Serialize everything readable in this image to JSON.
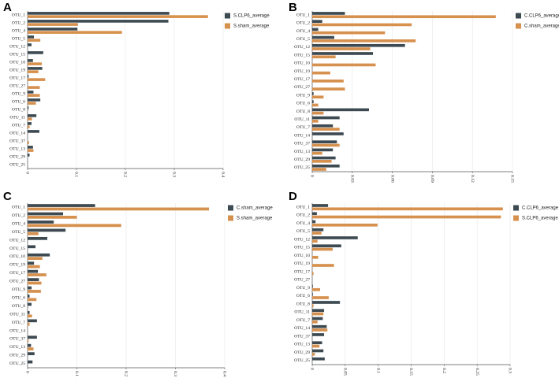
{
  "colors": {
    "dark": "#3d4a52",
    "orange": "#d6914f"
  },
  "chart_data": [
    {
      "type": "bar",
      "panel_label": "A",
      "orientation": "horizontal",
      "categories": [
        "OTU_1",
        "OTU_2",
        "OTU_4",
        "OTU_5",
        "OTU_12",
        "OTU_15",
        "OTU_10",
        "OTU_19",
        "OTU_17",
        "OTU_27",
        "OTU_9",
        "OTU_6",
        "OTU_8",
        "OTU_11",
        "OTU_7",
        "OTU_14",
        "OTU_37",
        "OTU_13",
        "OTU_29",
        "OTU_25"
      ],
      "series": [
        {
          "name": "S.CLP6_average",
          "color": "#3d4a52",
          "values": [
            0.29,
            0.288,
            0.102,
            0.013,
            0.008,
            0.032,
            0.011,
            0.03,
            0.002,
            0.0,
            0.012,
            0.026,
            0.002,
            0.018,
            0.008,
            0.024,
            0.0,
            0.011,
            0.004,
            0.0
          ]
        },
        {
          "name": "S.sham_average",
          "color": "#d6914f",
          "values": [
            0.369,
            0.103,
            0.193,
            0.026,
            0.0,
            0.0,
            0.029,
            0.022,
            0.036,
            0.025,
            0.025,
            0.017,
            0.0,
            0.009,
            0.004,
            0.0,
            0.003,
            0.012,
            0.0,
            0.0
          ]
        }
      ],
      "ticks": [
        "0",
        "0.1",
        "0.2",
        "0.3",
        "0.4"
      ],
      "xlim": [
        0,
        0.4
      ],
      "legend_position": "top-right",
      "grid": true
    },
    {
      "type": "bar",
      "panel_label": "B",
      "orientation": "horizontal",
      "categories": [
        "OTU_1",
        "OTU_2",
        "OTU_4",
        "OTU_5",
        "OTU_12",
        "OTU_15",
        "OTU_10",
        "OTU_19",
        "OTU_17",
        "OTU_27",
        "OTU_9",
        "OTU_6",
        "OTU_8",
        "OTU_11",
        "OTU_7",
        "OTU_14",
        "OTU_37",
        "OTU_13",
        "OTU_29",
        "OTU_25"
      ],
      "series": [
        {
          "name": "C.CLP6_average",
          "color": "#3d4a52",
          "values": [
            0.0245,
            0.0075,
            0.0045,
            0.0165,
            0.0695,
            0.0455,
            0.0,
            0.0,
            0.0,
            0.0,
            0.001,
            0.001,
            0.0425,
            0.0205,
            0.0155,
            0.0235,
            0.0185,
            0.0155,
            0.0175,
            0.0205
          ]
        },
        {
          "name": "C.sham_average",
          "color": "#d6914f",
          "values": [
            0.1375,
            0.0745,
            0.0545,
            0.0775,
            0.0435,
            0.0175,
            0.0475,
            0.0135,
            0.0235,
            0.0245,
            0.0085,
            0.0045,
            0.0085,
            0.0045,
            0.0205,
            0.0,
            0.0205,
            0.0075,
            0.0145,
            0.0105
          ]
        }
      ],
      "ticks": [
        "0",
        "0.03",
        "0.06",
        "0.09",
        "0.12",
        "0.15"
      ],
      "xlim": [
        0,
        0.15
      ],
      "legend_position": "top-right",
      "grid": true
    },
    {
      "type": "bar",
      "panel_label": "C",
      "orientation": "horizontal",
      "categories": [
        "OTU_1",
        "OTU_2",
        "OTU_4",
        "OTU_5",
        "OTU_12",
        "OTU_15",
        "OTU_10",
        "OTU_19",
        "OTU_17",
        "OTU_27",
        "OTU_9",
        "OTU_6",
        "OTU_8",
        "OTU_11",
        "OTU_7",
        "OTU_14",
        "OTU_37",
        "OTU_13",
        "OTU_29",
        "OTU_25"
      ],
      "series": [
        {
          "name": "C.sham_average",
          "color": "#3d4a52",
          "values": [
            0.137,
            0.072,
            0.053,
            0.077,
            0.04,
            0.016,
            0.045,
            0.013,
            0.021,
            0.023,
            0.008,
            0.004,
            0.008,
            0.004,
            0.019,
            0.0,
            0.019,
            0.007,
            0.014,
            0.01
          ]
        },
        {
          "name": "S.sham_average",
          "color": "#d6914f",
          "values": [
            0.368,
            0.1,
            0.19,
            0.022,
            0.0,
            0.0,
            0.03,
            0.025,
            0.038,
            0.028,
            0.027,
            0.018,
            0.0,
            0.009,
            0.004,
            0.0,
            0.002,
            0.012,
            0.0,
            0.0
          ]
        }
      ],
      "ticks": [
        "0",
        "0.1",
        "0.2",
        "0.3",
        "0.4"
      ],
      "xlim": [
        0,
        0.4
      ],
      "legend_position": "top-right",
      "grid": true
    },
    {
      "type": "bar",
      "panel_label": "D",
      "orientation": "horizontal",
      "categories": [
        "OTU_1",
        "OTU_2",
        "OTU_4",
        "OTU_5",
        "OTU_12",
        "OTU_15",
        "OTU_10",
        "OTU_19",
        "OTU_17",
        "OTU_27",
        "OTU_9",
        "OTU_6",
        "OTU_8",
        "OTU_11",
        "OTU_7",
        "OTU_14",
        "OTU_37",
        "OTU_13",
        "OTU_29",
        "OTU_25"
      ],
      "series": [
        {
          "name": "C.CLP6_average",
          "color": "#3d4a52",
          "values": [
            0.024,
            0.007,
            0.005,
            0.017,
            0.069,
            0.044,
            0.0,
            0.0,
            0.0,
            0.0,
            0.001,
            0.001,
            0.042,
            0.018,
            0.016,
            0.022,
            0.018,
            0.015,
            0.017,
            0.019
          ]
        },
        {
          "name": "S.CLP6_average",
          "color": "#d6914f",
          "values": [
            0.289,
            0.286,
            0.099,
            0.014,
            0.008,
            0.031,
            0.009,
            0.033,
            0.002,
            0.0,
            0.012,
            0.025,
            0.002,
            0.017,
            0.008,
            0.023,
            0.0,
            0.011,
            0.004,
            0.0
          ]
        }
      ],
      "ticks": [
        "0",
        "0.05",
        "0.1",
        "0.15",
        "0.2",
        "0.25",
        "0.3"
      ],
      "xlim": [
        0,
        0.3
      ],
      "legend_position": "top-right",
      "grid": true
    }
  ]
}
